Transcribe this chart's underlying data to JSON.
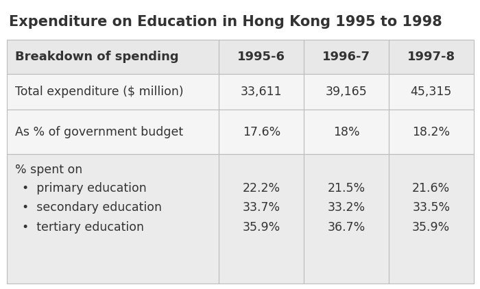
{
  "title": "Expenditure on Education in Hong Kong 1995 to 1998",
  "title_fontsize": 15,
  "title_fontweight": "bold",
  "title_color": "#333333",
  "background_color": "#ffffff",
  "border_color": "#bbbbbb",
  "header_bg": "#e8e8e8",
  "row1_bg": "#f5f5f5",
  "row2_bg": "#f5f5f5",
  "row3_bg": "#ebebeb",
  "header_row": [
    "Breakdown of spending",
    "1995-6",
    "1996-7",
    "1997-8"
  ],
  "row1_label": "Total expenditure ($ million)",
  "row1_values": [
    "33,611",
    "39,165",
    "45,315"
  ],
  "row2_label": "As % of government budget",
  "row2_values": [
    "17.6%",
    "18%",
    "18.2%"
  ],
  "row3_header": "% spent on",
  "sub_labels": [
    "primary education",
    "secondary education",
    "tertiary education"
  ],
  "sub_values": [
    [
      "22.2%",
      "21.5%",
      "21.6%"
    ],
    [
      "33.7%",
      "33.2%",
      "33.5%"
    ],
    [
      "35.9%",
      "36.7%",
      "35.9%"
    ]
  ],
  "text_color": "#333333",
  "header_fontsize": 13,
  "body_fontsize": 12.5
}
